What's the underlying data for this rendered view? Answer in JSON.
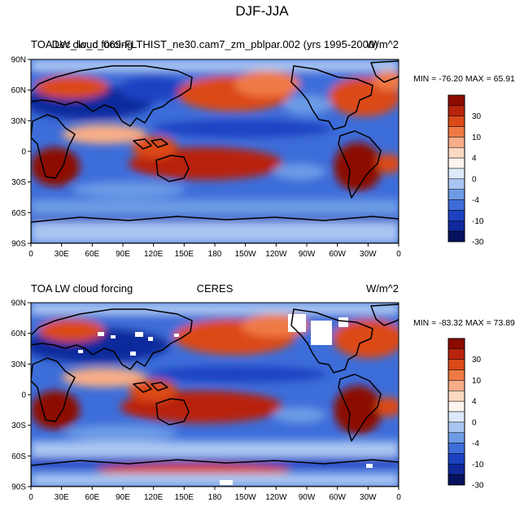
{
  "figure_title": "DJF-JJA",
  "panels": [
    {
      "left_string": "TOA LW cloud forcing",
      "center_string": "Dec_lw_c_069-FLTHIST_ne30.cam7_zm_pblpar.002 (yrs 1995-2000)",
      "right_string": "W/m^2",
      "stats": "MIN = -76.20 MAX =  65.91"
    },
    {
      "left_string": "TOA LW cloud forcing",
      "center_string": "CERES",
      "right_string": "W/m^2",
      "stats": "MIN = -83.32 MAX =  73.89"
    }
  ],
  "lat_labels": [
    "90N",
    "60N",
    "30N",
    "0",
    "30S",
    "60S",
    "90S"
  ],
  "lon_labels": [
    "0",
    "30E",
    "60E",
    "90E",
    "120E",
    "150E",
    "180",
    "150W",
    "120W",
    "90W",
    "60W",
    "30W",
    "0"
  ],
  "colorbar_labels": [
    "30",
    "10",
    "4",
    "0",
    "-4",
    "-10",
    "-30"
  ],
  "colorbar_colors": [
    "#8c0a00",
    "#b8240c",
    "#db4a18",
    "#ef7a44",
    "#f7ad87",
    "#fbd9c2",
    "#fdf4ee",
    "#dde9fb",
    "#a9c6f2",
    "#6c9be6",
    "#3d6dd9",
    "#1c42c2",
    "#102a9c",
    "#06125e"
  ]
}
